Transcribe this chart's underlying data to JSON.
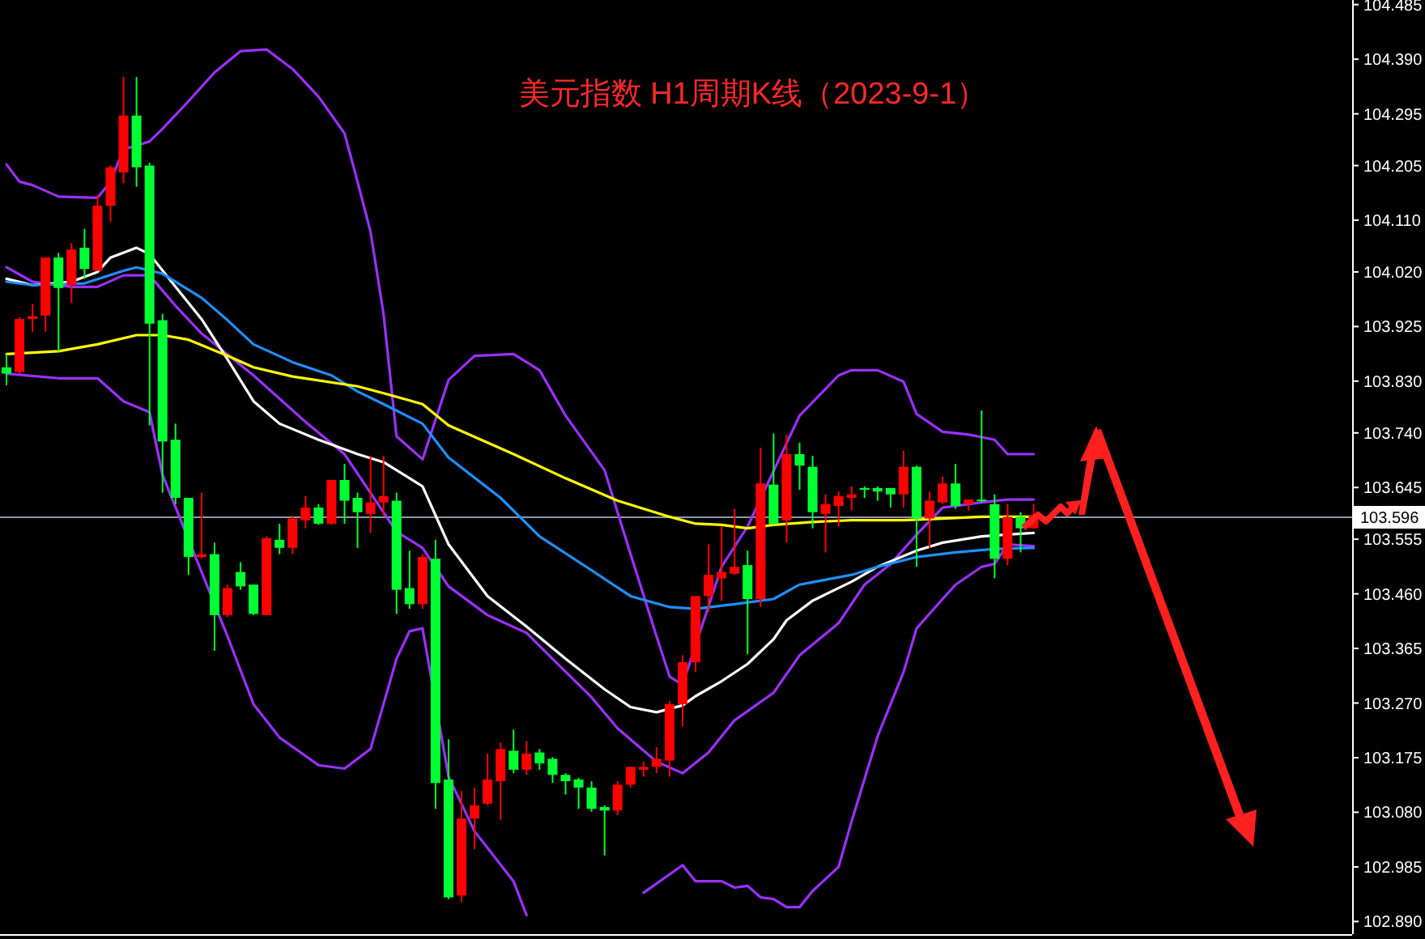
{
  "chart_data": {
    "type": "candlestick",
    "title": "美元指数 H1周期K线（2023-9-1）",
    "categories": [
      null,
      null,
      null,
      null,
      null,
      null,
      null,
      null,
      null,
      null,
      null,
      null,
      null,
      null,
      null,
      null,
      null,
      null,
      null,
      null,
      null,
      null,
      null,
      null,
      null,
      null,
      null,
      null,
      null,
      null,
      null,
      null,
      null,
      null,
      null,
      null,
      null,
      null,
      null,
      null,
      null,
      null,
      null,
      null,
      null,
      null,
      null,
      null,
      null,
      null,
      null,
      null,
      null,
      null,
      null,
      null,
      null,
      null,
      null,
      null,
      null,
      null,
      null,
      null,
      null,
      null,
      null,
      null,
      null,
      null,
      null,
      null,
      null,
      null,
      null,
      null,
      null,
      null,
      null,
      null,
      null,
      null,
      null,
      null,
      null,
      null,
      null,
      null,
      null,
      null,
      null,
      null,
      null,
      null,
      null,
      null,
      null,
      null,
      null,
      null,
      null,
      null,
      null,
      null
    ],
    "ohlc": [
      [
        103.854,
        103.877,
        103.823,
        103.843
      ],
      [
        103.846,
        103.941,
        103.843,
        103.938
      ],
      [
        103.938,
        103.964,
        103.916,
        103.943
      ],
      [
        103.944,
        104.045,
        103.916,
        104.045
      ],
      [
        104.045,
        104.053,
        103.882,
        103.992
      ],
      [
        103.997,
        104.07,
        103.966,
        104.059
      ],
      [
        104.062,
        104.095,
        104.008,
        104.025
      ],
      [
        104.022,
        104.154,
        104.022,
        104.135
      ],
      [
        104.135,
        104.205,
        104.107,
        104.202
      ],
      [
        104.193,
        104.359,
        104.174,
        104.292
      ],
      [
        104.292,
        104.359,
        104.168,
        104.202
      ],
      [
        104.205,
        104.21,
        103.753,
        103.93
      ],
      [
        103.936,
        103.947,
        103.636,
        103.725
      ],
      [
        103.728,
        103.756,
        103.616,
        103.627
      ],
      [
        103.627,
        103.627,
        103.493,
        103.524
      ],
      [
        103.524,
        103.636,
        103.521,
        103.529
      ],
      [
        103.529,
        103.549,
        103.361,
        103.423
      ],
      [
        103.423,
        103.476,
        103.42,
        103.47
      ],
      [
        103.498,
        103.515,
        103.467,
        103.473
      ],
      [
        103.476,
        103.476,
        103.423,
        103.425
      ],
      [
        103.423,
        103.56,
        103.423,
        103.557
      ],
      [
        103.554,
        103.582,
        103.529,
        103.54
      ],
      [
        103.54,
        103.596,
        103.529,
        103.591
      ],
      [
        103.588,
        103.63,
        103.574,
        103.61
      ],
      [
        103.61,
        103.616,
        103.58,
        103.582
      ],
      [
        103.582,
        103.658,
        103.58,
        103.658
      ],
      [
        103.658,
        103.686,
        103.582,
        103.622
      ],
      [
        103.627,
        103.636,
        103.54,
        103.602
      ],
      [
        103.599,
        103.7,
        103.566,
        103.619
      ],
      [
        103.619,
        103.7,
        103.596,
        103.63
      ],
      [
        103.622,
        103.636,
        103.425,
        103.467
      ],
      [
        103.47,
        103.535,
        103.434,
        103.442
      ],
      [
        103.442,
        103.529,
        103.434,
        103.524
      ],
      [
        103.521,
        103.554,
        103.086,
        103.131
      ],
      [
        103.137,
        103.207,
        102.929,
        102.932
      ],
      [
        102.935,
        103.117,
        102.924,
        103.069
      ],
      [
        103.069,
        103.123,
        103.016,
        103.092
      ],
      [
        103.095,
        103.182,
        103.092,
        103.137
      ],
      [
        103.134,
        103.201,
        103.067,
        103.19
      ],
      [
        103.187,
        103.224,
        103.148,
        103.154
      ],
      [
        103.154,
        103.204,
        103.145,
        103.182
      ],
      [
        103.184,
        103.19,
        103.154,
        103.165
      ],
      [
        103.173,
        103.176,
        103.131,
        103.145
      ],
      [
        103.145,
        103.148,
        103.111,
        103.134
      ],
      [
        103.137,
        103.14,
        103.086,
        103.123
      ],
      [
        103.123,
        103.134,
        103.081,
        103.086
      ],
      [
        103.089,
        103.092,
        103.005,
        103.083
      ],
      [
        103.083,
        103.134,
        103.075,
        103.128
      ],
      [
        103.128,
        103.159,
        103.123,
        103.159
      ],
      [
        103.154,
        103.168,
        103.142,
        103.159
      ],
      [
        103.159,
        103.193,
        103.148,
        103.173
      ],
      [
        103.17,
        103.274,
        103.142,
        103.268
      ],
      [
        103.268,
        103.353,
        103.229,
        103.341
      ],
      [
        103.341,
        103.456,
        103.324,
        103.456
      ],
      [
        103.456,
        103.546,
        103.428,
        103.493
      ],
      [
        103.487,
        103.577,
        103.448,
        103.498
      ],
      [
        103.495,
        103.608,
        103.493,
        103.507
      ],
      [
        103.51,
        103.535,
        103.355,
        103.451
      ],
      [
        103.451,
        103.714,
        103.437,
        103.652
      ],
      [
        103.65,
        103.739,
        103.58,
        103.582
      ],
      [
        103.588,
        103.737,
        103.549,
        103.703
      ],
      [
        103.703,
        103.723,
        103.641,
        103.683
      ],
      [
        103.681,
        103.7,
        103.574,
        103.602
      ],
      [
        103.599,
        103.633,
        103.532,
        103.616
      ],
      [
        103.613,
        103.638,
        103.577,
        103.63
      ],
      [
        103.627,
        103.647,
        103.605,
        103.633
      ],
      [
        103.644,
        103.647,
        103.627,
        103.641
      ],
      [
        103.644,
        103.647,
        103.622,
        103.638
      ],
      [
        103.644,
        103.644,
        103.61,
        103.633
      ],
      [
        103.633,
        103.709,
        103.61,
        103.681
      ],
      [
        103.681,
        103.683,
        103.507,
        103.591
      ],
      [
        103.591,
        103.638,
        103.54,
        103.622
      ],
      [
        103.619,
        103.664,
        103.616,
        103.652
      ],
      [
        103.652,
        103.686,
        103.608,
        103.613
      ],
      [
        103.616,
        103.624,
        103.605,
        103.624
      ],
      [
        103.624,
        103.779,
        103.619,
        103.622
      ],
      [
        103.616,
        103.633,
        103.487,
        103.521
      ],
      [
        103.521,
        103.616,
        103.51,
        103.594
      ],
      [
        103.594,
        103.602,
        103.532,
        103.574
      ],
      [
        103.574,
        103.616,
        103.574,
        103.596
      ],
      null,
      null,
      null,
      null,
      null,
      null,
      null,
      null,
      null,
      null,
      null,
      null,
      null,
      null,
      null,
      null,
      null,
      null,
      null,
      null,
      null,
      null,
      null,
      null
    ],
    "colors": [
      "#00ff33",
      "#ff0000",
      "#ff0000",
      "#ff0000",
      "#00ff33",
      "#ff0000",
      "#00ff33",
      "#ff0000",
      "#ff0000",
      "#ff0000",
      "#00ff33",
      "#00ff33",
      "#00ff33",
      "#00ff33",
      "#00ff33",
      "#ff0000",
      "#00ff33",
      "#ff0000",
      "#00ff33",
      "#00ff33",
      "#ff0000",
      "#00ff33",
      "#ff0000",
      "#ff0000",
      "#00ff33",
      "#ff0000",
      "#00ff33",
      "#00ff33",
      "#ff0000",
      "#ff0000",
      "#00ff33",
      "#00ff33",
      "#ff0000",
      "#00ff33",
      "#00ff33",
      "#ff0000",
      "#ff0000",
      "#ff0000",
      "#ff0000",
      "#00ff33",
      "#ff0000",
      "#00ff33",
      "#00ff33",
      "#00ff33",
      "#00ff33",
      "#00ff33",
      "#00ff33",
      "#ff0000",
      "#ff0000",
      "#ff0000",
      "#ff0000",
      "#ff0000",
      "#ff0000",
      "#ff0000",
      "#ff0000",
      "#ff0000",
      "#ff0000",
      "#00ff33",
      "#ff0000",
      "#00ff33",
      "#ff0000",
      "#00ff33",
      "#00ff33",
      "#ff0000",
      "#ff0000",
      "#ff0000",
      "#00ff33",
      "#00ff33",
      "#00ff33",
      "#ff0000",
      "#00ff33",
      "#ff0000",
      "#ff0000",
      "#00ff33",
      "#ff0000",
      "#00ff33",
      "#00ff33",
      "#ff0000",
      "#00ff33",
      "#ff0000",
      null,
      null,
      null,
      null,
      null,
      null,
      null,
      null,
      null,
      null,
      null,
      null,
      null,
      null,
      null,
      null,
      null,
      null,
      null,
      null,
      null,
      null,
      null,
      null
    ],
    "series": [
      {
        "type": "line",
        "color": "#9b30ff",
        "values": [
          104.207,
          104.177,
          104.171,
          null,
          104.151,
          null,
          null,
          104.149,
          104.177,
          104.233,
          null,
          104.247,
          104.269,
          null,
          104.317,
          null,
          104.367,
          null,
          104.404,
          null,
          104.407,
          null,
          104.373,
          null,
          104.325,
          null,
          104.261,
          104.177,
          104.09,
          103.947,
          103.734,
          null,
          103.694,
          null,
          103.832,
          null,
          103.874,
          null,
          null,
          103.877,
          null,
          103.849,
          null,
          103.77,
          null,
          null,
          103.675,
          null,
          103.529,
          null,
          103.386,
          103.316,
          103.302,
          null,
          null,
          103.507,
          null,
          103.577,
          null,
          null,
          null,
          103.77,
          null,
          null,
          103.84,
          103.849,
          null,
          103.849,
          null,
          103.829,
          103.773,
          null,
          103.742,
          null,
          103.737,
          null,
          103.728,
          103.703,
          null,
          103.703,
          null,
          null,
          null,
          null,
          null,
          null,
          null,
          null,
          null,
          null,
          null,
          null,
          null,
          null,
          null,
          null,
          null,
          null,
          null,
          null,
          null,
          null,
          null,
          null
        ]
      },
      {
        "type": "line",
        "color": "#9b30ff",
        "values": [
          104.028,
          null,
          104.003,
          null,
          null,
          103.994,
          null,
          103.994,
          null,
          104.014,
          null,
          104.014,
          null,
          103.961,
          null,
          103.913,
          null,
          null,
          null,
          103.84,
          null,
          null,
          null,
          103.759,
          null,
          null,
          103.703,
          null,
          null,
          null,
          103.568,
          null,
          103.54,
          null,
          103.473,
          null,
          null,
          103.423,
          null,
          null,
          103.392,
          null,
          103.347,
          null,
          null,
          103.28,
          null,
          103.226,
          null,
          null,
          103.168,
          null,
          103.148,
          null,
          103.184,
          null,
          103.24,
          null,
          null,
          103.288,
          null,
          103.353,
          null,
          null,
          103.409,
          null,
          103.476,
          null,
          103.512,
          null,
          103.563,
          null,
          103.61,
          null,
          null,
          103.619,
          null,
          103.624,
          null,
          103.624,
          null,
          null,
          null,
          null,
          null,
          null,
          null,
          null,
          null,
          null,
          null,
          null,
          null,
          null,
          null,
          null,
          null,
          null,
          null,
          null,
          null,
          null,
          null,
          null
        ]
      },
      {
        "type": "line",
        "color": "#9b30ff",
        "values": [
          103.843,
          null,
          null,
          null,
          103.835,
          null,
          null,
          103.835,
          null,
          103.795,
          null,
          103.776,
          103.667,
          null,
          null,
          null,
          null,
          103.386,
          null,
          103.268,
          null,
          103.21,
          null,
          null,
          103.162,
          null,
          103.156,
          103.173,
          103.19,
          null,
          103.347,
          103.395,
          103.4,
          null,
          103.142,
          null,
          103.047,
          null,
          null,
          102.96,
          102.901,
          null,
          null,
          null,
          null,
          null,
          null,
          null,
          null,
          null,
          null,
          null,
          null,
          null,
          null,
          null,
          null,
          null,
          null,
          null,
          null,
          null,
          null,
          null,
          null,
          null,
          null,
          null,
          null,
          null,
          null,
          null,
          null,
          null,
          null,
          null,
          null,
          null,
          null,
          null,
          null,
          null,
          null,
          null,
          null,
          null,
          null,
          null,
          null,
          null,
          null,
          null,
          null,
          null,
          null,
          null,
          null,
          null,
          null,
          null,
          null,
          null,
          null,
          null
        ]
      },
      {
        "type": "line",
        "color": "#9b30ff",
        "values": [
          null,
          null,
          null,
          null,
          null,
          null,
          null,
          null,
          null,
          null,
          null,
          null,
          null,
          null,
          null,
          null,
          null,
          null,
          null,
          null,
          null,
          null,
          null,
          null,
          null,
          null,
          null,
          null,
          null,
          null,
          null,
          null,
          null,
          null,
          null,
          null,
          null,
          null,
          null,
          null,
          null,
          null,
          null,
          null,
          null,
          null,
          null,
          null,
          null,
          102.94,
          null,
          null,
          102.988,
          102.96,
          null,
          102.96,
          102.949,
          102.952,
          102.932,
          102.929,
          102.915,
          102.915,
          102.943,
          null,
          102.985,
          103.064,
          null,
          103.212,
          null,
          103.324,
          103.4,
          null,
          103.451,
          103.476,
          null,
          103.507,
          103.512,
          103.546,
          null,
          103.543,
          null,
          null,
          null,
          null,
          null,
          null,
          null,
          null,
          null,
          null,
          null,
          null,
          null,
          null,
          null,
          null,
          null,
          null,
          null,
          null,
          null,
          null,
          null,
          null
        ]
      },
      {
        "type": "line",
        "color": "#ffffff",
        "values": [
          104.008,
          null,
          103.997,
          null,
          null,
          104.003,
          null,
          104.02,
          104.045,
          null,
          104.062,
          104.051,
          null,
          103.994,
          null,
          103.938,
          null,
          103.868,
          null,
          103.795,
          null,
          103.756,
          null,
          null,
          103.728,
          null,
          null,
          103.703,
          null,
          103.689,
          null,
          null,
          103.647,
          null,
          103.546,
          null,
          null,
          103.456,
          null,
          null,
          103.403,
          null,
          null,
          103.347,
          null,
          null,
          103.294,
          null,
          103.263,
          null,
          103.254,
          null,
          103.266,
          103.282,
          null,
          103.308,
          null,
          103.338,
          null,
          103.381,
          103.414,
          null,
          103.448,
          null,
          null,
          103.481,
          null,
          103.507,
          null,
          null,
          103.535,
          null,
          103.549,
          null,
          null,
          103.56,
          null,
          103.563,
          null,
          103.566,
          null,
          null,
          null,
          null,
          null,
          null,
          null,
          null,
          null,
          null,
          null,
          null,
          null,
          null,
          null,
          null,
          null,
          null,
          null,
          null,
          null,
          null,
          null,
          null
        ]
      },
      {
        "type": "line",
        "color": "#1e90ff",
        "values": [
          104.003,
          null,
          103.997,
          null,
          null,
          null,
          104.0,
          null,
          null,
          104.022,
          104.028,
          null,
          104.017,
          null,
          null,
          103.975,
          null,
          103.936,
          null,
          103.894,
          null,
          null,
          103.863,
          null,
          null,
          103.84,
          null,
          103.812,
          null,
          103.79,
          null,
          null,
          103.756,
          null,
          103.697,
          null,
          null,
          null,
          103.627,
          null,
          null,
          103.56,
          null,
          null,
          null,
          103.501,
          null,
          null,
          103.456,
          null,
          null,
          103.437,
          null,
          103.434,
          null,
          null,
          103.442,
          null,
          null,
          103.451,
          null,
          103.476,
          null,
          null,
          null,
          103.493,
          null,
          103.507,
          null,
          null,
          103.524,
          null,
          null,
          103.532,
          null,
          null,
          103.538,
          null,
          null,
          103.54,
          null,
          null,
          null,
          null,
          null,
          null,
          null,
          null,
          null,
          null,
          null,
          null,
          null,
          null,
          null,
          null,
          null,
          null,
          null,
          null,
          null,
          null,
          null,
          null
        ]
      },
      {
        "type": "line",
        "color": "#ffff00",
        "values": [
          103.877,
          null,
          null,
          null,
          103.882,
          null,
          null,
          103.894,
          null,
          null,
          103.91,
          null,
          103.91,
          null,
          103.902,
          null,
          null,
          103.874,
          null,
          103.854,
          null,
          null,
          103.838,
          null,
          null,
          null,
          null,
          103.821,
          null,
          103.809,
          null,
          null,
          103.79,
          null,
          103.753,
          null,
          null,
          null,
          null,
          103.703,
          null,
          null,
          null,
          103.661,
          null,
          null,
          null,
          103.622,
          null,
          null,
          null,
          103.594,
          null,
          103.582,
          null,
          103.58,
          null,
          103.574,
          null,
          103.58,
          null,
          null,
          103.585,
          null,
          null,
          103.588,
          null,
          null,
          null,
          103.588,
          null,
          null,
          103.591,
          null,
          null,
          103.594,
          null,
          null,
          null,
          103.594,
          null,
          null,
          null,
          null,
          null,
          null,
          null,
          null,
          null,
          null,
          null,
          null,
          null,
          null,
          null,
          null,
          null,
          null,
          null,
          null,
          null,
          null,
          null,
          null
        ]
      }
    ],
    "ylim": [
      102.868,
      104.493
    ],
    "yticks": [
      {
        "value": 104.485,
        "label": "104.485"
      },
      {
        "value": 104.39,
        "label": "104.390"
      },
      {
        "value": 104.295,
        "label": "104.295"
      },
      {
        "value": 104.205,
        "label": "104.205"
      },
      {
        "value": 104.11,
        "label": "104.110"
      },
      {
        "value": 104.02,
        "label": "104.020"
      },
      {
        "value": 103.925,
        "label": "103.925"
      },
      {
        "value": 103.83,
        "label": "103.830"
      },
      {
        "value": 103.74,
        "label": "103.740"
      },
      {
        "value": 103.645,
        "label": "103.645"
      },
      {
        "value": 103.555,
        "label": "103.555"
      },
      {
        "value": 103.46,
        "label": "103.460"
      },
      {
        "value": 103.365,
        "label": "103.365"
      },
      {
        "value": 103.27,
        "label": "103.270"
      },
      {
        "value": 103.175,
        "label": "103.175"
      },
      {
        "value": 103.08,
        "label": "103.080"
      },
      {
        "value": 102.985,
        "label": "102.985"
      },
      {
        "value": 102.89,
        "label": "102.890"
      }
    ],
    "ref_lines": [
      {
        "axis": "y",
        "value": 103.596,
        "label": "103.596",
        "color": "#8c9aa8"
      }
    ],
    "tick_labels": "y"
  }
}
